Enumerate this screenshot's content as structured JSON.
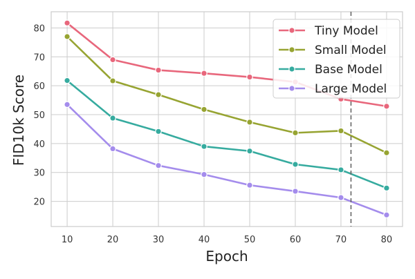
{
  "chart_data": {
    "type": "line",
    "title": "",
    "xlabel": "Epoch",
    "ylabel": "FID10k Score",
    "x": [
      10,
      20,
      30,
      40,
      50,
      60,
      70,
      80
    ],
    "xlim": [
      6.5,
      83.5
    ],
    "ylim": [
      11.3,
      85.6
    ],
    "xticks": [
      10,
      20,
      30,
      40,
      50,
      60,
      70,
      80
    ],
    "yticks": [
      20,
      30,
      40,
      50,
      60,
      70,
      80
    ],
    "grid": true,
    "legend_position": "top-right",
    "vertical_reference_line": {
      "x": 72.2,
      "style": "dashed",
      "color": "#666666"
    },
    "series": [
      {
        "name": "Tiny Model",
        "color": "#E8677C",
        "values": [
          81.7,
          69.0,
          65.4,
          64.3,
          63.0,
          61.3,
          55.4,
          52.9
        ]
      },
      {
        "name": "Small Model",
        "color": "#97A432",
        "values": [
          77.0,
          61.7,
          56.9,
          51.8,
          47.4,
          43.7,
          44.4,
          36.8
        ]
      },
      {
        "name": "Base Model",
        "color": "#36AB9F",
        "values": [
          61.8,
          48.8,
          44.2,
          39.0,
          37.4,
          32.8,
          30.9,
          24.6
        ]
      },
      {
        "name": "Large Model",
        "color": "#A48CEC",
        "values": [
          53.5,
          38.2,
          32.4,
          29.3,
          25.6,
          23.5,
          21.3,
          15.3
        ]
      }
    ]
  }
}
